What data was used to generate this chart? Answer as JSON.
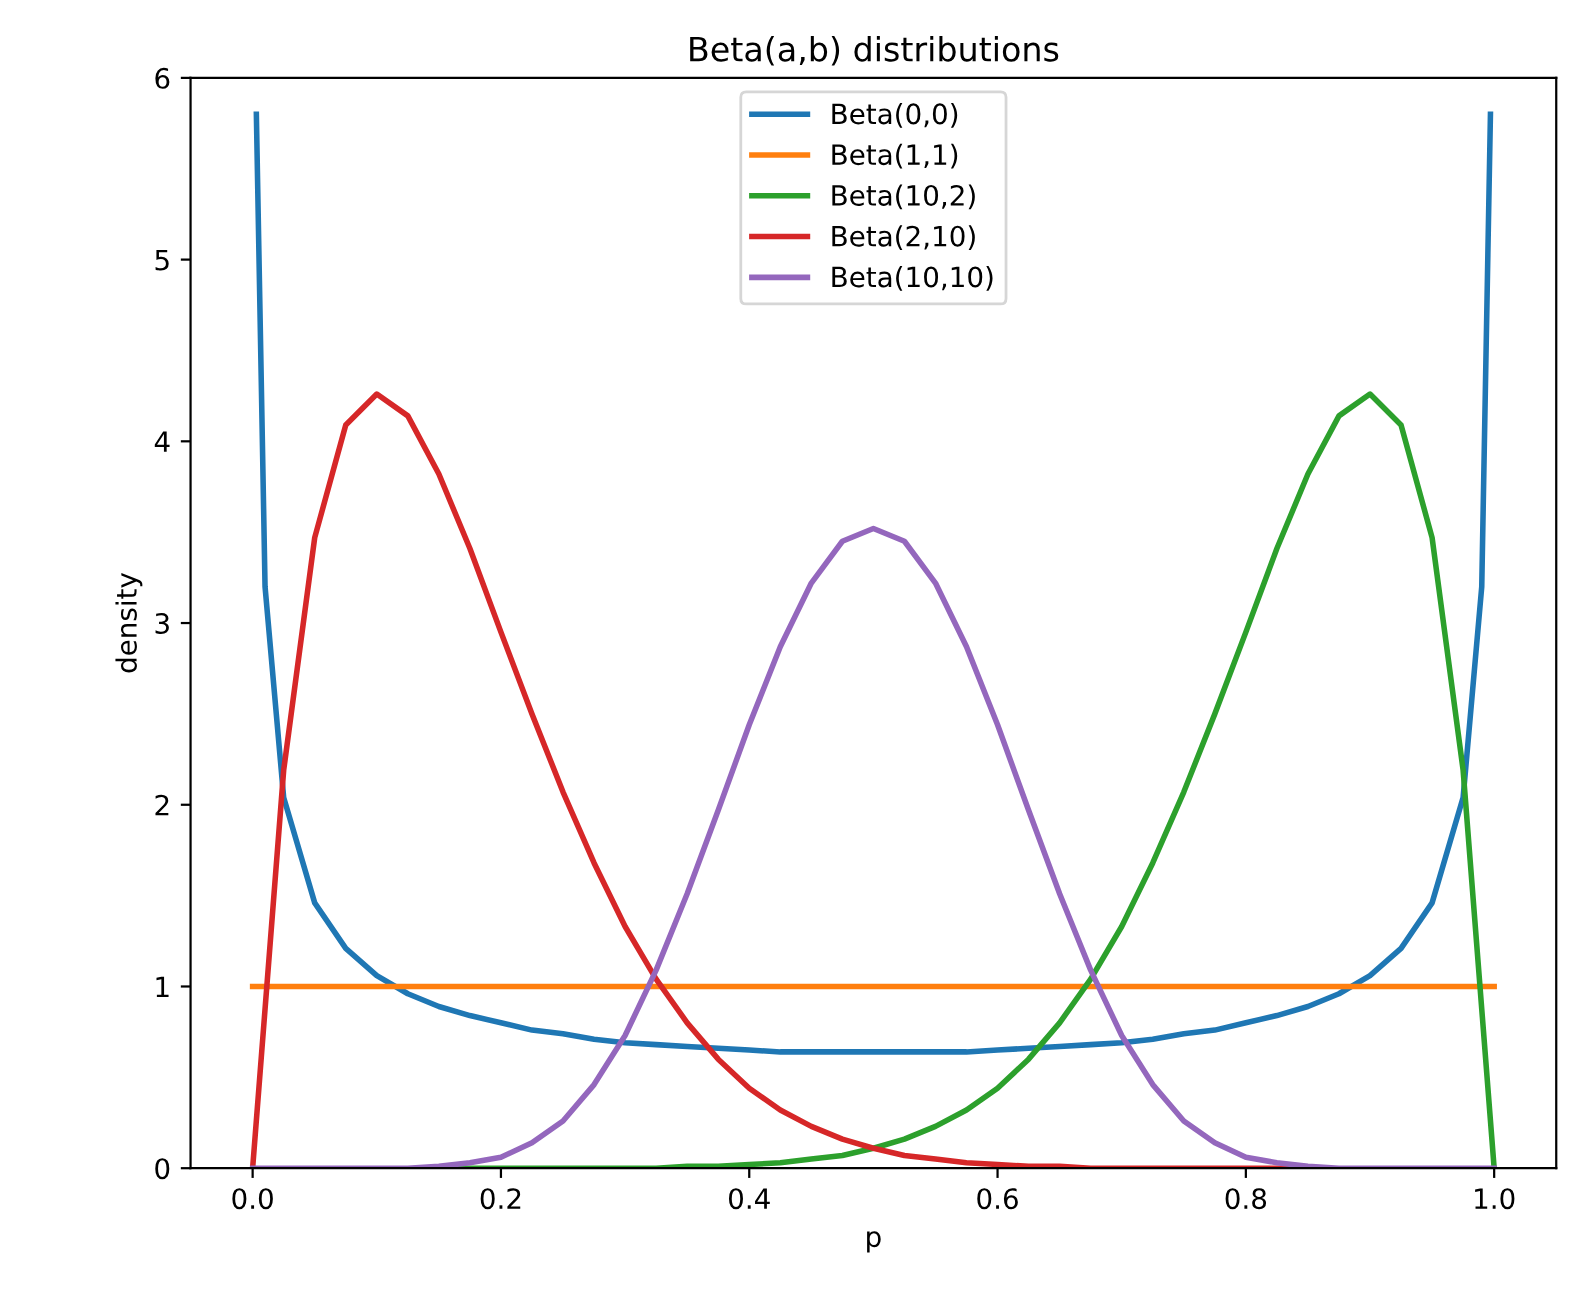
{
  "chart_data": {
    "type": "line",
    "title": "Beta(a,b) distributions",
    "xlabel": "p",
    "ylabel": "density",
    "x": [
      0,
      0.025,
      0.05,
      0.075,
      0.1,
      0.125,
      0.15,
      0.175,
      0.2,
      0.225,
      0.25,
      0.275,
      0.3,
      0.325,
      0.35,
      0.375,
      0.4,
      0.425,
      0.45,
      0.475,
      0.5,
      0.525,
      0.55,
      0.575,
      0.6,
      0.625,
      0.65,
      0.675,
      0.7,
      0.725,
      0.75,
      0.775,
      0.8,
      0.825,
      0.85,
      0.875,
      0.9,
      0.925,
      0.95,
      0.975,
      1
    ],
    "series": [
      {
        "name": "Beta(0,0)",
        "color": "#1f77b4",
        "x": [
          0.003,
          0.01,
          0.025,
          0.05,
          0.075,
          0.1,
          0.125,
          0.15,
          0.175,
          0.2,
          0.225,
          0.25,
          0.275,
          0.3,
          0.325,
          0.35,
          0.375,
          0.4,
          0.425,
          0.45,
          0.475,
          0.5,
          0.525,
          0.55,
          0.575,
          0.6,
          0.625,
          0.65,
          0.675,
          0.7,
          0.725,
          0.75,
          0.775,
          0.8,
          0.825,
          0.85,
          0.875,
          0.9,
          0.925,
          0.95,
          0.975,
          0.99,
          0.997
        ],
        "values": [
          5.8,
          3.2,
          2.04,
          1.46,
          1.21,
          1.06,
          0.96,
          0.89,
          0.84,
          0.8,
          0.76,
          0.74,
          0.71,
          0.69,
          0.68,
          0.67,
          0.66,
          0.65,
          0.64,
          0.64,
          0.64,
          0.64,
          0.64,
          0.64,
          0.64,
          0.65,
          0.66,
          0.67,
          0.68,
          0.69,
          0.71,
          0.74,
          0.76,
          0.8,
          0.84,
          0.89,
          0.96,
          1.06,
          1.21,
          1.46,
          2.04,
          3.2,
          5.8
        ]
      },
      {
        "name": "Beta(1,1)",
        "color": "#ff7f0e",
        "x": [
          0,
          1
        ],
        "values": [
          1,
          1
        ]
      },
      {
        "name": "Beta(10,2)",
        "color": "#2ca02c",
        "values": [
          null,
          null,
          null,
          null,
          null,
          null,
          0,
          0,
          0,
          0,
          0,
          0,
          0,
          0,
          0.01,
          0.01,
          0.02,
          0.03,
          0.05,
          0.07,
          0.11,
          0.16,
          0.23,
          0.32,
          0.44,
          0.6,
          0.8,
          1.04,
          1.33,
          1.68,
          2.07,
          2.5,
          2.95,
          3.41,
          3.82,
          4.14,
          4.26,
          4.09,
          3.47,
          2.19,
          0
        ]
      },
      {
        "name": "Beta(2,10)",
        "color": "#d62728",
        "values": [
          0,
          2.19,
          3.47,
          4.09,
          4.26,
          4.14,
          3.82,
          3.41,
          2.95,
          2.5,
          2.07,
          1.68,
          1.33,
          1.04,
          0.8,
          0.6,
          0.44,
          0.32,
          0.23,
          0.16,
          0.11,
          0.07,
          0.05,
          0.03,
          0.02,
          0.01,
          0.01,
          0,
          0,
          0,
          0,
          0,
          0,
          0,
          0,
          null,
          null,
          null,
          null,
          null,
          null
        ]
      },
      {
        "name": "Beta(10,10)",
        "color": "#9467bd",
        "values": [
          0,
          0,
          0,
          0,
          0,
          0,
          0.01,
          0.03,
          0.06,
          0.14,
          0.26,
          0.46,
          0.73,
          1.09,
          1.51,
          1.97,
          2.44,
          2.87,
          3.22,
          3.45,
          3.52,
          3.45,
          3.22,
          2.87,
          2.44,
          1.97,
          1.51,
          1.09,
          0.73,
          0.46,
          0.26,
          0.14,
          0.06,
          0.03,
          0.01,
          0,
          0,
          0,
          0,
          0,
          0
        ]
      }
    ],
    "xlim": [
      -0.05,
      1.05
    ],
    "ylim": [
      0,
      6
    ],
    "xticks": [
      {
        "value": 0,
        "label": "0.0"
      },
      0.2,
      0.4,
      0.6,
      0.8,
      {
        "value": 1,
        "label": "1.0"
      }
    ],
    "yticks": [
      0,
      1,
      2,
      3,
      4,
      5,
      6
    ],
    "legend": "upper center",
    "grid": false
  }
}
